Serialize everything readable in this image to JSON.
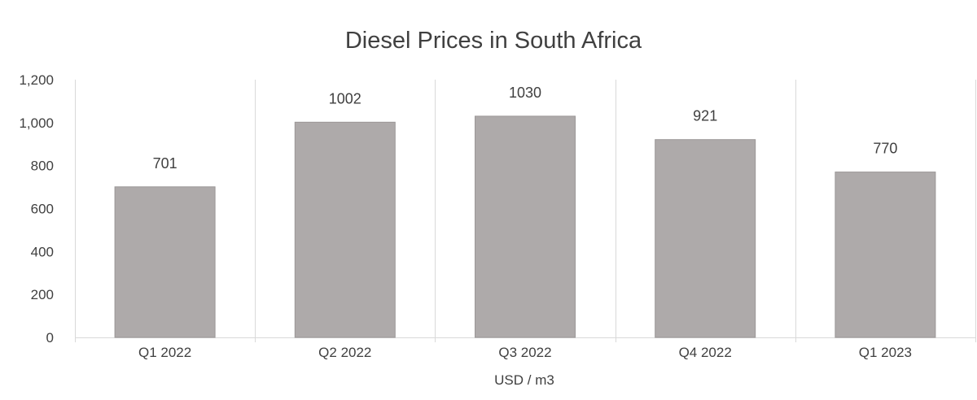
{
  "chart_data": {
    "type": "bar",
    "title": "Diesel Prices in South Africa",
    "xlabel": "USD / m3",
    "ylabel": "",
    "categories": [
      "Q1 2022",
      "Q2 2022",
      "Q3 2022",
      "Q4 2022",
      "Q1 2023"
    ],
    "values": [
      701,
      1002,
      1030,
      921,
      770
    ],
    "data_labels": [
      "701",
      "1002",
      "1030",
      "921",
      "770"
    ],
    "ylim": [
      0,
      1200
    ],
    "y_ticks": [
      0,
      200,
      400,
      600,
      800,
      1000,
      1200
    ],
    "y_tick_labels": [
      "0",
      "200",
      "400",
      "600",
      "800",
      "1,000",
      "1,200"
    ],
    "bar_color": "#aeaaaa",
    "grid": "vertical-category-separators",
    "legend": "none"
  }
}
